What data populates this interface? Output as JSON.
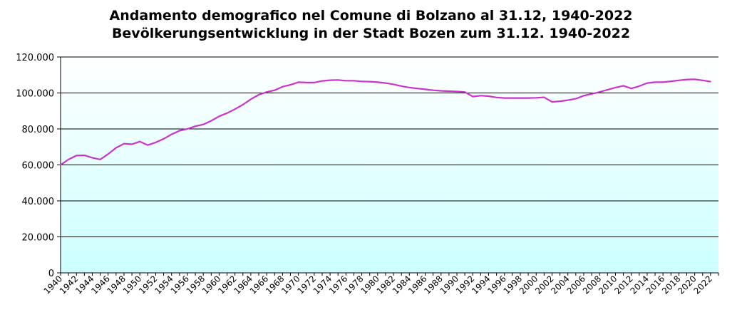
{
  "chart_data": {
    "type": "line",
    "title": "Andamento demografico nel Comune di Bolzano al 31.12, 1940-2022",
    "subtitle": "Bevölkerungsentwicklung in der Stadt Bozen zum 31.12. 1940-2022",
    "xlabel": "",
    "ylabel": "",
    "ylim": [
      0,
      120000
    ],
    "xlim": [
      1940,
      2023
    ],
    "grid": true,
    "legend": "none",
    "line_color": "#cc33cc",
    "plot_gradient": [
      "#ffffff",
      "#ccffff"
    ],
    "y_ticks": [
      "0",
      "20.000",
      "40.000",
      "60.000",
      "80.000",
      "100.000",
      "120.000"
    ],
    "y_tick_values": [
      0,
      20000,
      40000,
      60000,
      80000,
      100000,
      120000
    ],
    "x_ticks": [
      "1940",
      "1942",
      "1944",
      "1946",
      "1948",
      "1950",
      "1952",
      "1954",
      "1956",
      "1958",
      "1960",
      "1962",
      "1964",
      "1966",
      "1968",
      "1970",
      "1972",
      "1974",
      "1976",
      "1978",
      "1980",
      "1982",
      "1984",
      "1986",
      "1988",
      "1990",
      "1992",
      "1994",
      "1996",
      "1998",
      "2000",
      "2002",
      "2004",
      "2006",
      "2008",
      "2010",
      "2012",
      "2014",
      "2016",
      "2018",
      "2020",
      "2022"
    ],
    "x": [
      1940,
      1941,
      1942,
      1943,
      1944,
      1945,
      1946,
      1947,
      1948,
      1949,
      1950,
      1951,
      1952,
      1953,
      1954,
      1955,
      1956,
      1957,
      1958,
      1959,
      1960,
      1961,
      1962,
      1963,
      1964,
      1965,
      1966,
      1967,
      1968,
      1969,
      1970,
      1971,
      1972,
      1973,
      1974,
      1975,
      1976,
      1977,
      1978,
      1979,
      1980,
      1981,
      1982,
      1983,
      1984,
      1985,
      1986,
      1987,
      1988,
      1989,
      1990,
      1991,
      1992,
      1993,
      1994,
      1995,
      1996,
      1997,
      1998,
      1999,
      2000,
      2001,
      2002,
      2003,
      2004,
      2005,
      2006,
      2007,
      2008,
      2009,
      2010,
      2011,
      2012,
      2013,
      2014,
      2015,
      2016,
      2017,
      2018,
      2019,
      2020,
      2021,
      2022
    ],
    "series": [
      {
        "values": [
          60000,
          63000,
          65200,
          65300,
          64000,
          63000,
          66000,
          69500,
          71800,
          71500,
          73000,
          71000,
          72500,
          74500,
          77000,
          79000,
          80000,
          81500,
          82500,
          84500,
          87000,
          88800,
          91000,
          93500,
          96500,
          99000,
          100500,
          101500,
          103500,
          104500,
          106000,
          105800,
          105800,
          106700,
          107100,
          107200,
          106800,
          106800,
          106400,
          106300,
          106000,
          105500,
          104800,
          103800,
          103000,
          102500,
          102000,
          101500,
          101200,
          101000,
          100800,
          100500,
          98000,
          98500,
          98200,
          97500,
          97200,
          97200,
          97200,
          97200,
          97300,
          97600,
          95000,
          95400,
          96000,
          96800,
          98500,
          99500,
          100500,
          101800,
          103000,
          104000,
          102500,
          103800,
          105500,
          106000,
          106000,
          106500,
          107000,
          107500,
          107600,
          107000,
          106300
        ]
      }
    ]
  }
}
